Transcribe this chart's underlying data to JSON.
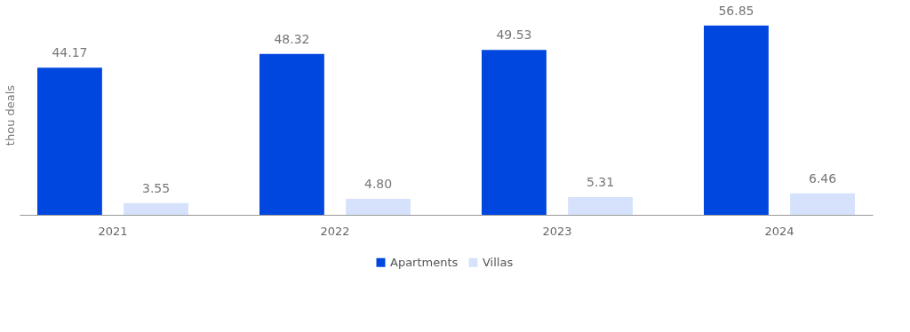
{
  "chart_data": {
    "type": "bar",
    "ylabel": "thou deals",
    "categories": [
      "2021",
      "2022",
      "2023",
      "2024"
    ],
    "series": [
      {
        "name": "Apartments",
        "color": "#0047e0",
        "values": [
          44.17,
          48.32,
          49.53,
          56.85
        ],
        "value_labels": [
          "44.17",
          "48.32",
          "49.53",
          "56.85"
        ]
      },
      {
        "name": "Villas",
        "color": "#d6e2fb",
        "values": [
          3.55,
          4.8,
          5.31,
          6.46
        ],
        "value_labels": [
          "3.55",
          "4.80",
          "5.31",
          "6.46"
        ]
      }
    ],
    "legend": "bottom",
    "grid": false
  }
}
